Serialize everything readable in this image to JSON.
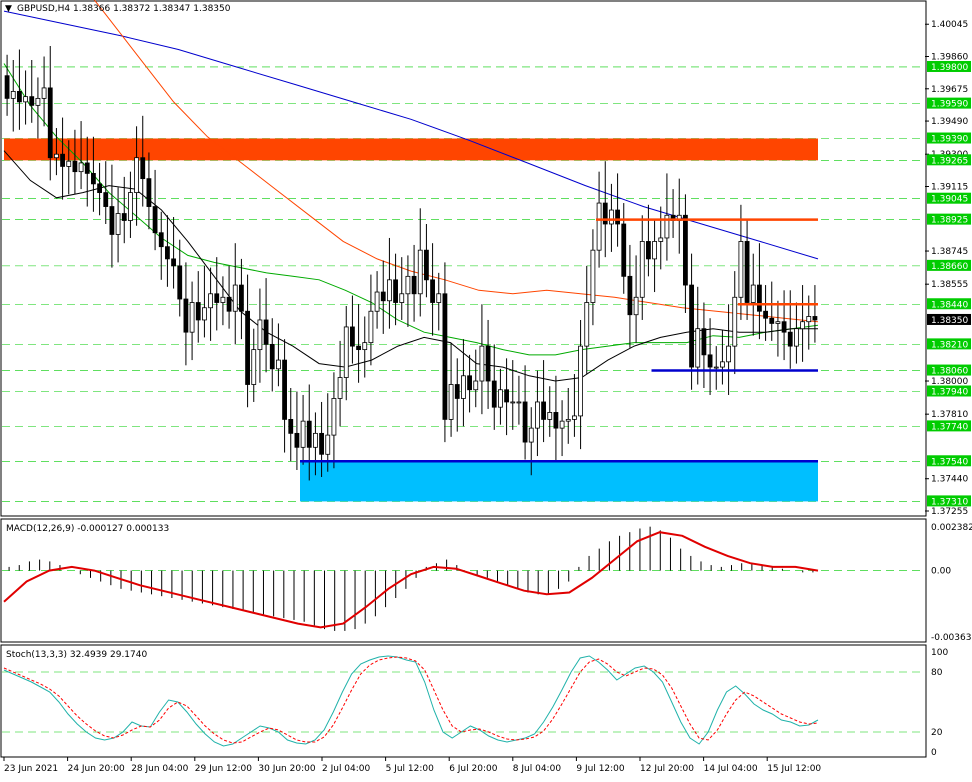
{
  "chart_data": {
    "type": "candlestick",
    "main": {
      "header": "GBPUSD,H4  1.38366 1.38372 1.38347 1.38350",
      "symbol": "GBPUSD",
      "timeframe": "H4",
      "ohlc_readout": [
        1.38366,
        1.38372,
        1.38347,
        1.3835
      ],
      "current_price": "1.38350",
      "ylim": [
        1.37255,
        1.40075
      ],
      "y_ticks": [
        "1.40045",
        "1.39860",
        "1.39675",
        "1.39490",
        "1.39300",
        "1.39115",
        "1.38745",
        "1.38555",
        "1.38000",
        "1.37810",
        "1.37440",
        "1.37255"
      ],
      "level_lines": [
        "1.39800",
        "1.39590",
        "1.39390",
        "1.39265",
        "1.39045",
        "1.38925",
        "1.38660",
        "1.38440",
        "1.38210",
        "1.38060",
        "1.37940",
        "1.37740",
        "1.37540",
        "1.37310"
      ],
      "zones": [
        {
          "name": "resistance-zone",
          "from": 1.39265,
          "to": 1.3939,
          "color": "#ff4500",
          "x_from": 0,
          "x_to": 132
        },
        {
          "name": "support-zone",
          "from": 1.3731,
          "to": 1.3754,
          "color": "#00bfff",
          "x_from": 48,
          "x_to": 132
        }
      ],
      "hlines": [
        {
          "name": "red-level-upper",
          "y": 1.38925,
          "color": "#ff4500",
          "x_from": 96,
          "x_to": 132
        },
        {
          "name": "red-level-lower",
          "y": 1.3844,
          "color": "#ff4500",
          "x_from": 119,
          "x_to": 132
        },
        {
          "name": "blue-level-lower",
          "y": 1.3806,
          "color": "#0000cd",
          "x_from": 105,
          "x_to": 132
        },
        {
          "name": "blue-level-support",
          "y": 1.3754,
          "color": "#0000cd",
          "x_from": 48,
          "x_to": 132
        }
      ],
      "candles_open_close": [
        [
          1.3975,
          1.3962
        ],
        [
          1.3962,
          1.3966
        ],
        [
          1.3966,
          1.396
        ],
        [
          1.396,
          1.3963
        ],
        [
          1.3963,
          1.3958
        ],
        [
          1.3958,
          1.3962
        ],
        [
          1.3962,
          1.3968
        ],
        [
          1.3968,
          1.3928
        ],
        [
          1.3928,
          1.393
        ],
        [
          1.393,
          1.3923
        ],
        [
          1.3923,
          1.3926
        ],
        [
          1.3926,
          1.392
        ],
        [
          1.392,
          1.3925
        ],
        [
          1.3925,
          1.3919
        ],
        [
          1.3919,
          1.3913
        ],
        [
          1.3913,
          1.3908
        ],
        [
          1.3908,
          1.39
        ],
        [
          1.39,
          1.3884
        ],
        [
          1.3884,
          1.3896
        ],
        [
          1.3896,
          1.3892
        ],
        [
          1.3892,
          1.3908
        ],
        [
          1.3908,
          1.3928
        ],
        [
          1.3928,
          1.3916
        ],
        [
          1.3916,
          1.39
        ],
        [
          1.39,
          1.3885
        ],
        [
          1.3885,
          1.3877
        ],
        [
          1.3877,
          1.387
        ],
        [
          1.387,
          1.3866
        ],
        [
          1.3866,
          1.3847
        ],
        [
          1.3847,
          1.3828
        ],
        [
          1.3828,
          1.3845
        ],
        [
          1.3845,
          1.3835
        ],
        [
          1.3835,
          1.3842
        ],
        [
          1.3842,
          1.385
        ],
        [
          1.385,
          1.3845
        ],
        [
          1.3845,
          1.3848
        ],
        [
          1.3848,
          1.384
        ],
        [
          1.384,
          1.3855
        ],
        [
          1.3855,
          1.384
        ],
        [
          1.384,
          1.3798
        ],
        [
          1.3798,
          1.3818
        ],
        [
          1.3818,
          1.3835
        ],
        [
          1.3835,
          1.3821
        ],
        [
          1.3821,
          1.3807
        ],
        [
          1.3807,
          1.3812
        ],
        [
          1.3812,
          1.3778
        ],
        [
          1.3778,
          1.377
        ],
        [
          1.377,
          1.3762
        ],
        [
          1.3762,
          1.3777
        ],
        [
          1.3777,
          1.3762
        ],
        [
          1.3762,
          1.377
        ],
        [
          1.377,
          1.3758
        ],
        [
          1.3758,
          1.3769
        ],
        [
          1.3769,
          1.379
        ],
        [
          1.379,
          1.3802
        ],
        [
          1.3802,
          1.3831
        ],
        [
          1.3831,
          1.382
        ],
        [
          1.382,
          1.3818
        ],
        [
          1.3818,
          1.3822
        ],
        [
          1.3822,
          1.384
        ],
        [
          1.384,
          1.3851
        ],
        [
          1.3851,
          1.3846
        ],
        [
          1.3846,
          1.3858
        ],
        [
          1.3858,
          1.3845
        ],
        [
          1.3845,
          1.385
        ],
        [
          1.385,
          1.386
        ],
        [
          1.386,
          1.385
        ],
        [
          1.385,
          1.3875
        ],
        [
          1.3875,
          1.3858
        ],
        [
          1.3858,
          1.3845
        ],
        [
          1.3845,
          1.385
        ],
        [
          1.385,
          1.3778
        ],
        [
          1.3778,
          1.3798
        ],
        [
          1.3798,
          1.379
        ],
        [
          1.379,
          1.3803
        ],
        [
          1.3803,
          1.3795
        ],
        [
          1.3795,
          1.38
        ],
        [
          1.38,
          1.382
        ],
        [
          1.382,
          1.38
        ],
        [
          1.38,
          1.3785
        ],
        [
          1.3785,
          1.3795
        ],
        [
          1.3795,
          1.3788
        ],
        [
          1.3788,
          1.3788
        ],
        [
          1.3788,
          1.3788
        ],
        [
          1.3788,
          1.3765
        ],
        [
          1.3765,
          1.3773
        ],
        [
          1.3773,
          1.3788
        ],
        [
          1.3788,
          1.3778
        ],
        [
          1.3778,
          1.3782
        ],
        [
          1.3782,
          1.3773
        ],
        [
          1.3773,
          1.3777
        ],
        [
          1.3777,
          1.3778
        ],
        [
          1.3778,
          1.378
        ],
        [
          1.378,
          1.382
        ],
        [
          1.382,
          1.3845
        ],
        [
          1.3845,
          1.3875
        ],
        [
          1.3875,
          1.3902
        ],
        [
          1.3902,
          1.389
        ],
        [
          1.389,
          1.3898
        ],
        [
          1.3898,
          1.389
        ],
        [
          1.389,
          1.386
        ],
        [
          1.386,
          1.3838
        ],
        [
          1.3838,
          1.3848
        ],
        [
          1.3848,
          1.388
        ],
        [
          1.388,
          1.387
        ],
        [
          1.387,
          1.388
        ],
        [
          1.388,
          1.3882
        ],
        [
          1.3882,
          1.3895
        ],
        [
          1.3895,
          1.3892
        ],
        [
          1.3892,
          1.3895
        ],
        [
          1.3895,
          1.3855
        ],
        [
          1.3855,
          1.3808
        ],
        [
          1.3808,
          1.383
        ],
        [
          1.383,
          1.3815
        ],
        [
          1.3815,
          1.3808
        ],
        [
          1.3808,
          1.3808
        ],
        [
          1.3808,
          1.3811
        ],
        [
          1.3811,
          1.382
        ],
        [
          1.382,
          1.3848
        ],
        [
          1.3848,
          1.388
        ],
        [
          1.388,
          1.3845
        ],
        [
          1.3845,
          1.3855
        ],
        [
          1.3855,
          1.384
        ],
        [
          1.384,
          1.3836
        ],
        [
          1.3836,
          1.3833
        ],
        [
          1.3833,
          1.3834
        ],
        [
          1.3834,
          1.3828
        ],
        [
          1.3828,
          1.382
        ],
        [
          1.382,
          1.383
        ],
        [
          1.383,
          1.3834
        ],
        [
          1.3834,
          1.3837
        ],
        [
          1.3837,
          1.3835
        ]
      ],
      "sma_black": [
        1.3932,
        1.3915,
        1.3905,
        1.3908,
        1.3912,
        1.391,
        1.3898,
        1.388,
        1.386,
        1.384,
        1.3828,
        1.382,
        1.381,
        1.3808,
        1.3812,
        1.382,
        1.3825,
        1.3822,
        1.381,
        1.3808,
        1.3803,
        1.38,
        1.3802,
        1.3812,
        1.382,
        1.3825,
        1.3828,
        1.383,
        1.3828,
        1.3828,
        1.383,
        1.383
      ],
      "sma_green": [
        1.3982,
        1.3958,
        1.394,
        1.3925,
        1.3908,
        1.3895,
        1.3882,
        1.3872,
        1.3868,
        1.3865,
        1.3862,
        1.386,
        1.3858,
        1.3852,
        1.3845,
        1.3835,
        1.3828,
        1.3825,
        1.3822,
        1.3818,
        1.3815,
        1.3815,
        1.3818,
        1.382,
        1.3822,
        1.3822,
        1.3822,
        1.3826,
        1.3825,
        1.3828,
        1.383,
        1.3832
      ],
      "sma_orange": [
        1.407,
        1.4055,
        1.4035,
        1.401,
        1.3985,
        1.396,
        1.394,
        1.3925,
        1.391,
        1.3895,
        1.388,
        1.387,
        1.3863,
        1.3858,
        1.3852,
        1.385,
        1.3852,
        1.385,
        1.3848,
        1.3845,
        1.3842,
        1.384,
        1.3838,
        1.3836,
        1.3834
      ],
      "sma_blue": [
        1.4012,
        1.4005,
        1.3998,
        1.399,
        1.398,
        1.397,
        1.396,
        1.395,
        1.3938,
        1.3925,
        1.3912,
        1.39,
        1.389,
        1.388,
        1.387
      ],
      "right_axis_price_tags": [
        {
          "text": "1.39800",
          "color": "#00cc00"
        },
        {
          "text": "1.39590",
          "color": "#00cc00"
        },
        {
          "text": "1.39390",
          "color": "#00cc00"
        },
        {
          "text": "1.39265",
          "color": "#00cc00"
        },
        {
          "text": "1.39045",
          "color": "#00cc00"
        },
        {
          "text": "1.38925",
          "color": "#00cc00"
        },
        {
          "text": "1.38660",
          "color": "#00cc00"
        },
        {
          "text": "1.38440",
          "color": "#00cc00"
        },
        {
          "text": "1.38210",
          "color": "#00cc00"
        },
        {
          "text": "1.38060",
          "color": "#00cc00"
        },
        {
          "text": "1.37940",
          "color": "#00cc00"
        },
        {
          "text": "1.37740",
          "color": "#00cc00"
        },
        {
          "text": "1.37540",
          "color": "#00cc00"
        },
        {
          "text": "1.37310",
          "color": "#00cc00"
        },
        {
          "text": "1.38350",
          "color": "#000000"
        }
      ]
    },
    "macd": {
      "header": "MACD(12,26,9) -0.000127 0.000133",
      "params": "12,26,9",
      "values": [
        -0.000127,
        0.000133
      ],
      "ylim": [
        -0.003633,
        0.002382
      ],
      "y_ticks": [
        "0.002382",
        "0.00",
        "-0.003633"
      ],
      "histogram": [
        0.0002,
        0.0003,
        0.0005,
        0.0006,
        0.0005,
        0.0003,
        0.0,
        -0.0002,
        -0.0004,
        -0.0006,
        -0.0008,
        -0.001,
        -0.0011,
        -0.0012,
        -0.0013,
        -0.0014,
        -0.0015,
        -0.0016,
        -0.0017,
        -0.0018,
        -0.0019,
        -0.002,
        -0.0021,
        -0.0022,
        -0.0023,
        -0.0024,
        -0.0025,
        -0.0026,
        -0.0027,
        -0.0028,
        -0.003,
        -0.0032,
        -0.0033,
        -0.0033,
        -0.0032,
        -0.0029,
        -0.0025,
        -0.002,
        -0.0015,
        -0.001,
        -0.0004,
        0.0002,
        0.0004,
        0.0006,
        0.0003,
        0.0,
        -0.0003,
        -0.0004,
        -0.0006,
        -0.0008,
        -0.001,
        -0.0012,
        -0.0013,
        -0.0013,
        -0.001,
        -0.0006,
        0.0002,
        0.0008,
        0.0012,
        0.0016,
        0.0019,
        0.0021,
        0.0023,
        0.0024,
        0.0022,
        0.0018,
        0.0012,
        0.0008,
        0.0005,
        0.0003,
        0.0002,
        0.0003,
        0.0004,
        0.0004,
        0.0003,
        0.0002,
        0.0001,
        0.0,
        -0.0001,
        -0.0001
      ],
      "signal": [
        -0.0017,
        -0.0006,
        0.0,
        0.0002,
        0.0,
        -0.0004,
        -0.0008,
        -0.0011,
        -0.0014,
        -0.0017,
        -0.002,
        -0.0023,
        -0.0026,
        -0.0029,
        -0.0031,
        -0.0029,
        -0.002,
        -0.001,
        -0.0002,
        0.0002,
        0.0001,
        -0.0003,
        -0.0007,
        -0.0011,
        -0.0013,
        -0.0012,
        -0.0004,
        0.0006,
        0.0016,
        0.0021,
        0.0019,
        0.0013,
        0.0008,
        0.0004,
        0.0002,
        0.0002,
        0.0
      ]
    },
    "stoch": {
      "header": "Stoch(13,3,3) 32.4939 29.1740",
      "params": "13,3,3",
      "values": [
        32.4939,
        29.174
      ],
      "ylim": [
        0,
        100
      ],
      "y_ticks": [
        "100",
        "80",
        "20",
        "0"
      ],
      "levels": [
        80,
        20
      ],
      "main_line": [
        82,
        78,
        74,
        70,
        65,
        60,
        50,
        38,
        28,
        20,
        14,
        12,
        14,
        20,
        30,
        26,
        25,
        40,
        52,
        50,
        40,
        28,
        18,
        10,
        6,
        8,
        14,
        20,
        26,
        24,
        20,
        12,
        9,
        8,
        12,
        22,
        40,
        60,
        78,
        88,
        92,
        95,
        96,
        95,
        92,
        90,
        70,
        42,
        20,
        14,
        20,
        26,
        22,
        16,
        12,
        10,
        12,
        14,
        18,
        30,
        45,
        62,
        80,
        94,
        96,
        90,
        82,
        72,
        78,
        84,
        86,
        80,
        70,
        50,
        30,
        14,
        8,
        20,
        42,
        60,
        66,
        58,
        48,
        42,
        38,
        32,
        30,
        26,
        27,
        32
      ],
      "signal_line": [
        84,
        80,
        76,
        72,
        68,
        63,
        56,
        46,
        36,
        28,
        21,
        16,
        14,
        17,
        22,
        26,
        25,
        32,
        44,
        50,
        46,
        36,
        26,
        18,
        12,
        9,
        10,
        15,
        20,
        24,
        22,
        17,
        12,
        10,
        10,
        15,
        27,
        44,
        62,
        78,
        87,
        92,
        94,
        95,
        94,
        91,
        82,
        62,
        42,
        26,
        20,
        22,
        23,
        20,
        16,
        13,
        12,
        13,
        15,
        21,
        33,
        48,
        64,
        80,
        90,
        93,
        88,
        80,
        76,
        80,
        84,
        83,
        77,
        64,
        46,
        28,
        14,
        12,
        22,
        38,
        52,
        60,
        56,
        50,
        44,
        38,
        34,
        30,
        28,
        29
      ]
    },
    "x_tick_labels": [
      "23 Jun 2021",
      "24 Jun 20:00",
      "28 Jun 04:00",
      "29 Jun 12:00",
      "30 Jun 20:00",
      "2 Jul 04:00",
      "5 Jul 12:00",
      "6 Jul 20:00",
      "8 Jul 04:00",
      "9 Jul 12:00",
      "12 Jul 20:00",
      "14 Jul 04:00",
      "15 Jul 12:00"
    ]
  },
  "colors": {
    "bull_body": "#ffffff",
    "bear_body": "#000000",
    "grid": "#00cc00",
    "sma_black": "#000000",
    "sma_green": "#00aa00",
    "sma_orange": "#ff4500",
    "sma_blue": "#0000cd",
    "macd_signal": "#e00000",
    "stoch_main": "#20b2aa",
    "stoch_signal": "#ff0000"
  }
}
